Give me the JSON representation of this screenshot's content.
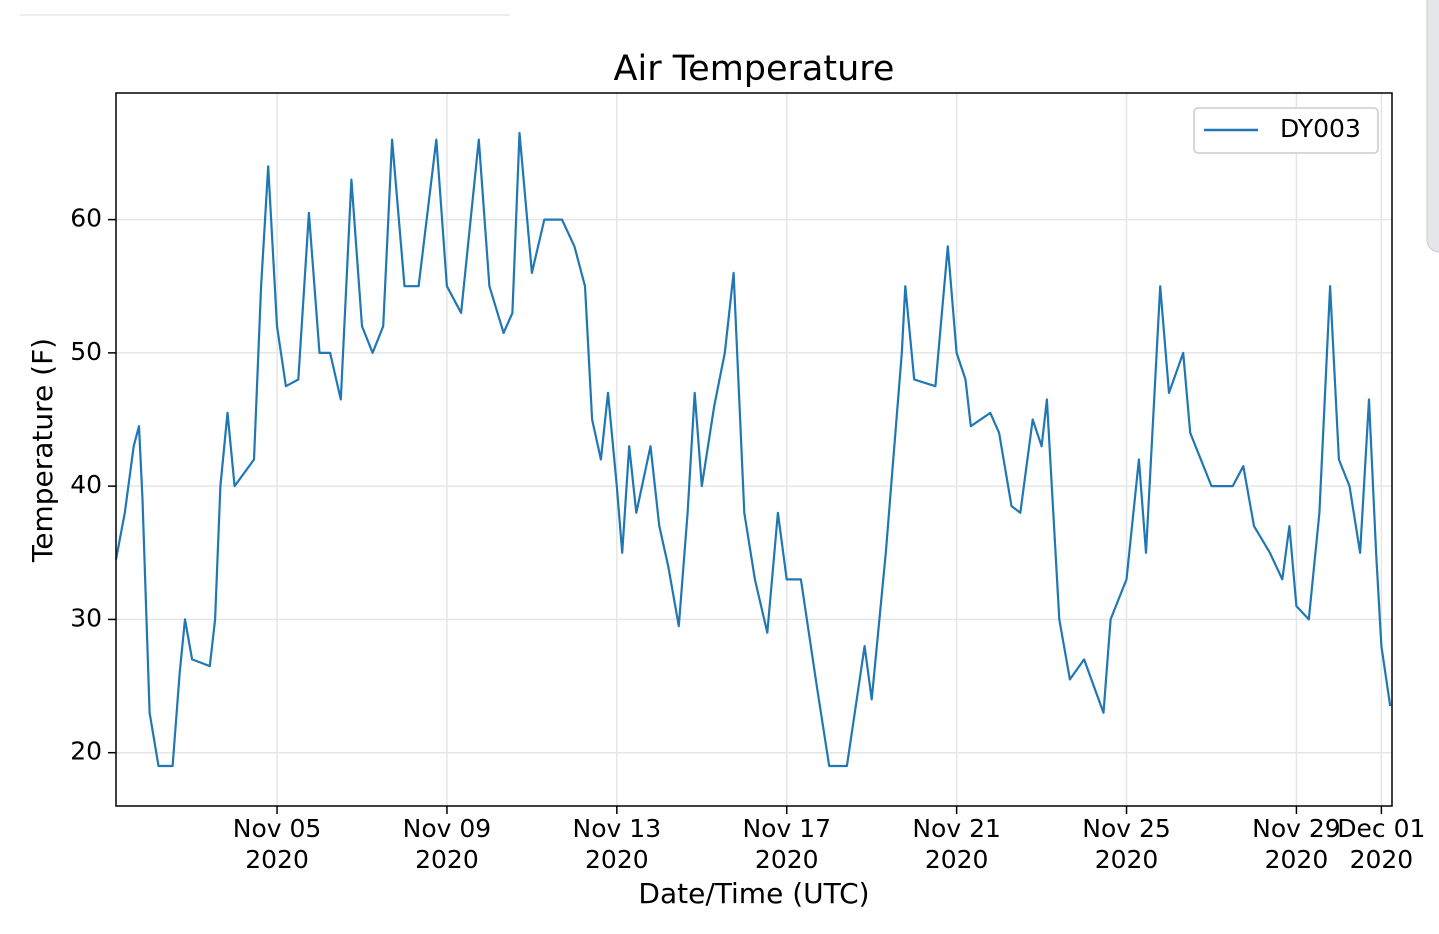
{
  "chart_data": {
    "type": "line",
    "title": "Air Temperature",
    "xlabel": "Date/Time (UTC)",
    "ylabel": "Temperature (F)",
    "x": [
      "2020-11-01T05:00",
      "2020-11-01T10:00",
      "2020-11-01T15:00",
      "2020-11-01T18:00",
      "2020-11-01T20:00",
      "2020-11-02T00:00",
      "2020-11-02T05:00",
      "2020-11-02T13:00",
      "2020-11-02T17:00",
      "2020-11-02T20:00",
      "2020-11-03T00:00",
      "2020-11-03T10:00",
      "2020-11-03T13:00",
      "2020-11-03T16:00",
      "2020-11-03T20:00",
      "2020-11-04T00:00",
      "2020-11-04T11:00",
      "2020-11-04T15:00",
      "2020-11-04T19:00",
      "2020-11-05T00:00",
      "2020-11-05T05:00",
      "2020-11-05T12:00",
      "2020-11-05T18:00",
      "2020-11-06T00:00",
      "2020-11-06T06:00",
      "2020-11-06T12:00",
      "2020-11-06T18:00",
      "2020-11-07T00:00",
      "2020-11-07T06:00",
      "2020-11-07T12:00",
      "2020-11-07T17:00",
      "2020-11-08T00:00",
      "2020-11-08T08:00",
      "2020-11-08T18:00",
      "2020-11-09T00:00",
      "2020-11-09T08:00",
      "2020-11-09T18:00",
      "2020-11-10T00:00",
      "2020-11-10T08:00",
      "2020-11-10T13:00",
      "2020-11-10T17:00",
      "2020-11-11T00:00",
      "2020-11-11T07:00",
      "2020-11-11T17:00",
      "2020-11-12T00:00",
      "2020-11-12T06:00",
      "2020-11-12T10:00",
      "2020-11-12T15:00",
      "2020-11-12T19:00",
      "2020-11-13T00:00",
      "2020-11-13T03:00",
      "2020-11-13T07:00",
      "2020-11-13T11:00",
      "2020-11-13T19:00",
      "2020-11-14T00:00",
      "2020-11-14T05:00",
      "2020-11-14T11:00",
      "2020-11-14T16:00",
      "2020-11-14T20:00",
      "2020-11-15T00:00",
      "2020-11-15T07:00",
      "2020-11-15T13:00",
      "2020-11-15T18:00",
      "2020-11-16T00:00",
      "2020-11-16T06:00",
      "2020-11-16T13:00",
      "2020-11-16T19:00",
      "2020-11-17T00:00",
      "2020-11-17T08:00",
      "2020-11-17T17:00",
      "2020-11-18T00:00",
      "2020-11-18T10:00",
      "2020-11-18T20:00",
      "2020-11-19T00:00",
      "2020-11-19T08:00",
      "2020-11-19T17:00",
      "2020-11-19T19:00",
      "2020-11-20T00:00",
      "2020-11-20T12:00",
      "2020-11-20T19:00",
      "2020-11-21T00:00",
      "2020-11-21T05:00",
      "2020-11-21T08:00",
      "2020-11-21T19:00",
      "2020-11-22T00:00",
      "2020-11-22T07:00",
      "2020-11-22T12:00",
      "2020-11-22T19:00",
      "2020-11-23T00:00",
      "2020-11-23T03:00",
      "2020-11-23T10:00",
      "2020-11-23T16:00",
      "2020-11-24T00:00",
      "2020-11-24T11:00",
      "2020-11-24T15:00",
      "2020-11-25T00:00",
      "2020-11-25T07:00",
      "2020-11-25T11:00",
      "2020-11-25T19:00",
      "2020-11-26T00:00",
      "2020-11-26T08:00",
      "2020-11-26T12:00",
      "2020-11-27T00:00",
      "2020-11-27T12:00",
      "2020-11-27T18:00",
      "2020-11-28T00:00",
      "2020-11-28T09:00",
      "2020-11-28T16:00",
      "2020-11-28T20:00",
      "2020-11-29T00:00",
      "2020-11-29T07:00",
      "2020-11-29T13:00",
      "2020-11-29T19:00",
      "2020-11-30T00:00",
      "2020-11-30T06:00",
      "2020-11-30T12:00",
      "2020-11-30T17:00",
      "2020-11-30T21:00",
      "2020-12-01T00:00",
      "2020-12-01T05:00"
    ],
    "series": [
      {
        "name": "DY003",
        "color": "#1f77b4",
        "values": [
          34.5,
          38,
          43,
          44.5,
          39,
          23,
          19,
          19,
          26,
          30,
          27,
          26.5,
          30,
          40,
          45.5,
          40,
          42,
          55,
          64,
          52,
          47.5,
          48,
          60.5,
          50,
          50,
          46.5,
          63,
          52,
          50,
          52,
          66,
          55,
          55,
          66,
          55,
          53,
          66,
          55,
          51.5,
          53,
          66.5,
          56,
          60,
          60,
          58,
          55,
          45,
          42,
          47,
          40,
          35,
          43,
          38,
          43,
          37,
          34,
          29.5,
          38,
          47,
          40,
          46,
          50,
          56,
          38,
          33,
          29,
          38,
          33,
          33,
          25,
          19,
          19,
          28,
          24,
          35,
          50,
          55,
          48,
          47.5,
          58,
          50,
          48,
          44.5,
          45.5,
          44,
          38.5,
          38,
          45,
          43,
          46.5,
          30,
          25.5,
          27,
          23,
          30,
          33,
          42,
          35,
          55,
          47,
          50,
          44,
          40,
          40,
          41.5,
          37,
          35,
          33,
          37,
          31,
          30,
          38,
          55,
          42,
          40,
          35,
          46.5,
          35,
          28,
          23.5
        ]
      }
    ],
    "xlim": [
      "2020-11-01T05:00",
      "2020-12-01T06:00"
    ],
    "xticks": [
      {
        "value": "2020-11-05",
        "label": "Nov 05\n2020"
      },
      {
        "value": "2020-11-09",
        "label": "Nov 09\n2020"
      },
      {
        "value": "2020-11-13",
        "label": "Nov 13\n2020"
      },
      {
        "value": "2020-11-17",
        "label": "Nov 17\n2020"
      },
      {
        "value": "2020-11-21",
        "label": "Nov 21\n2020"
      },
      {
        "value": "2020-11-25",
        "label": "Nov 25\n2020"
      },
      {
        "value": "2020-11-29",
        "label": "Nov 29\n2020"
      },
      {
        "value": "2020-12-01",
        "label": "Dec 01\n2020"
      }
    ],
    "ylim": [
      16.0,
      69.5
    ],
    "yticks": [
      20,
      30,
      40,
      50,
      60
    ],
    "grid": true,
    "legend": "upper right"
  }
}
